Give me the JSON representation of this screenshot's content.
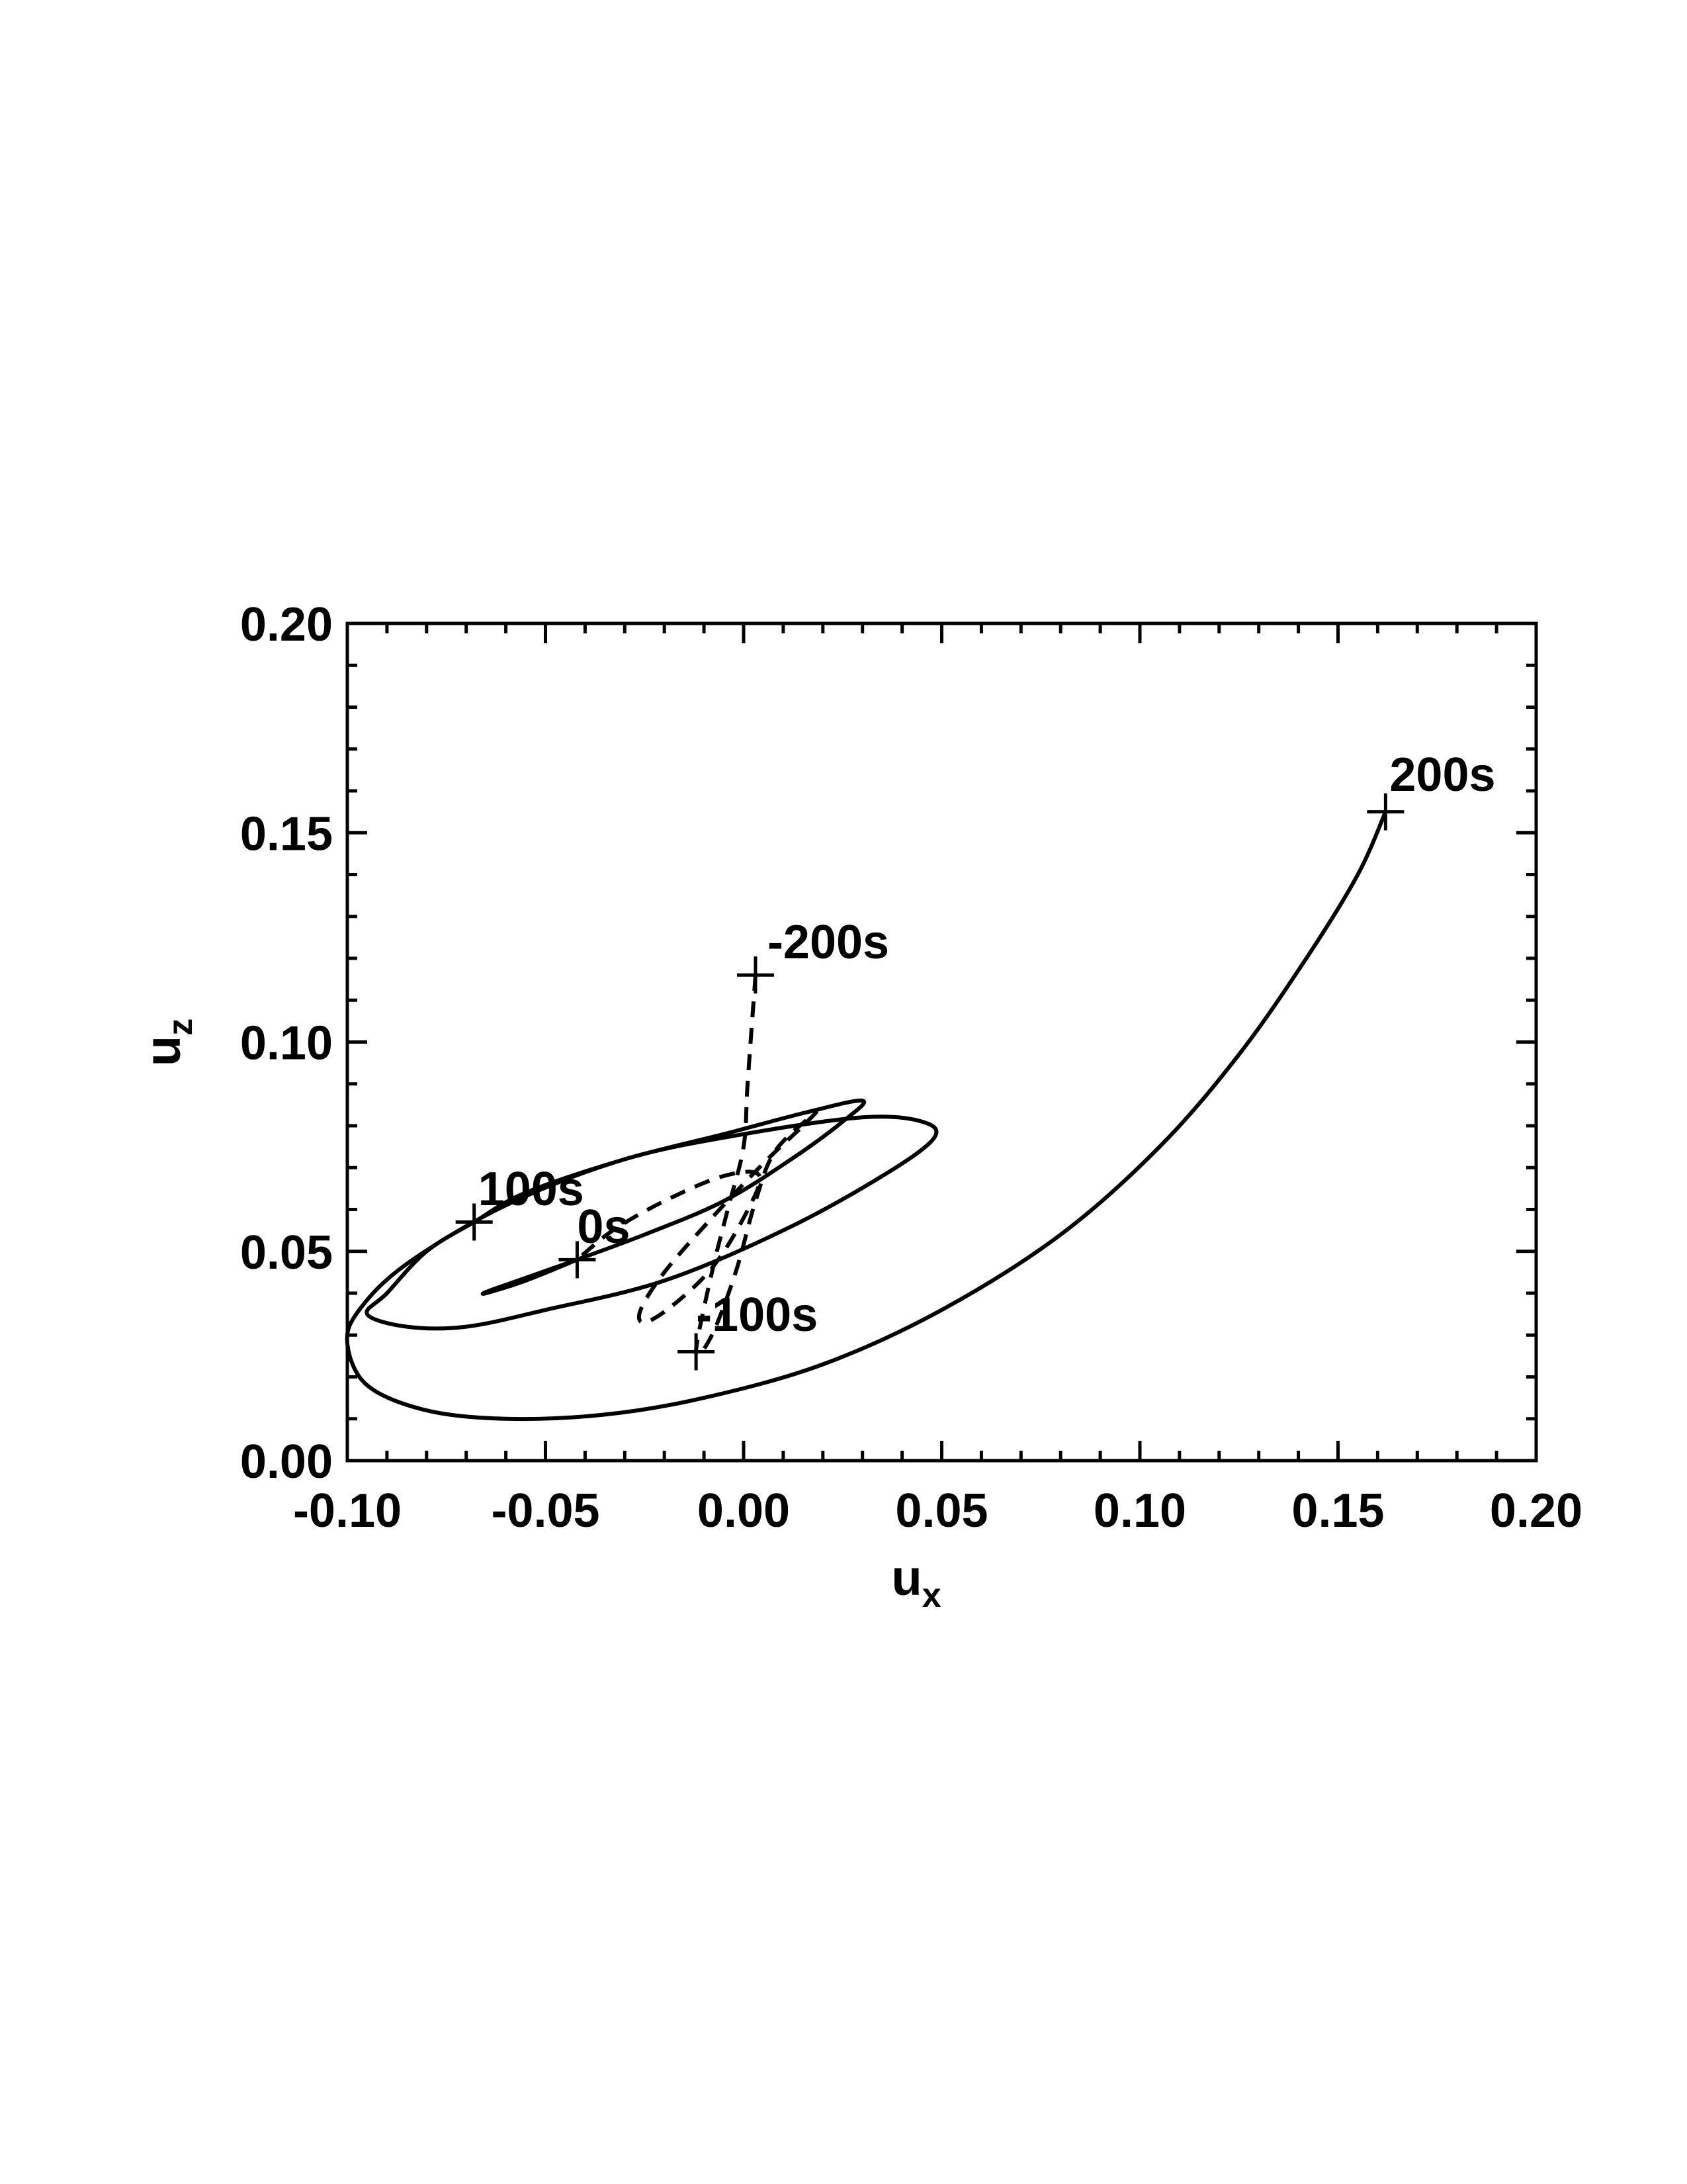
{
  "chart_data": {
    "type": "line",
    "title": "",
    "xlabel": {
      "base": "u",
      "sub": "x"
    },
    "ylabel": {
      "base": "u",
      "sub": "z"
    },
    "xlim": [
      -0.1,
      0.2
    ],
    "ylim": [
      0.0,
      0.2
    ],
    "xticks": [
      {
        "value": -0.1,
        "label": "-0.10"
      },
      {
        "value": -0.05,
        "label": "-0.05"
      },
      {
        "value": 0.0,
        "label": "0.00"
      },
      {
        "value": 0.05,
        "label": "0.05"
      },
      {
        "value": 0.1,
        "label": "0.10"
      },
      {
        "value": 0.15,
        "label": "0.15"
      },
      {
        "value": 0.2,
        "label": "0.20"
      }
    ],
    "yticks": [
      {
        "value": 0.0,
        "label": "0.00"
      },
      {
        "value": 0.05,
        "label": "0.05"
      },
      {
        "value": 0.1,
        "label": "0.10"
      },
      {
        "value": 0.15,
        "label": "0.15"
      },
      {
        "value": 0.2,
        "label": "0.20"
      }
    ],
    "minor_x_step": 0.01,
    "minor_y_step": 0.01,
    "grid": false,
    "legend": "none",
    "series": [
      {
        "style": "solid",
        "color": "#000000",
        "points": [
          [
            -0.042,
            0.048
          ],
          [
            -0.055,
            0.043
          ],
          [
            -0.065,
            0.04
          ],
          [
            -0.063,
            0.041
          ],
          [
            -0.045,
            0.047
          ],
          [
            -0.025,
            0.054
          ],
          [
            -0.005,
            0.062
          ],
          [
            0.012,
            0.072
          ],
          [
            0.025,
            0.081
          ],
          [
            0.03,
            0.086
          ],
          [
            0.015,
            0.083
          ],
          [
            -0.005,
            0.078
          ],
          [
            -0.03,
            0.072
          ],
          [
            -0.055,
            0.064
          ],
          [
            -0.068,
            0.057
          ],
          [
            -0.08,
            0.05
          ],
          [
            -0.09,
            0.04
          ],
          [
            -0.095,
            0.035
          ],
          [
            -0.085,
            0.032
          ],
          [
            -0.07,
            0.032
          ],
          [
            -0.05,
            0.036
          ],
          [
            -0.02,
            0.043
          ],
          [
            0.01,
            0.055
          ],
          [
            0.035,
            0.068
          ],
          [
            0.048,
            0.077
          ],
          [
            0.045,
            0.081
          ],
          [
            0.03,
            0.082
          ],
          [
            0.0,
            0.078
          ],
          [
            -0.03,
            0.072
          ],
          [
            -0.06,
            0.061
          ],
          [
            -0.085,
            0.047
          ],
          [
            -0.097,
            0.036
          ],
          [
            -0.1,
            0.028
          ],
          [
            -0.095,
            0.018
          ],
          [
            -0.08,
            0.012
          ],
          [
            -0.06,
            0.01
          ],
          [
            -0.035,
            0.011
          ],
          [
            -0.01,
            0.015
          ],
          [
            0.02,
            0.023
          ],
          [
            0.05,
            0.036
          ],
          [
            0.08,
            0.054
          ],
          [
            0.105,
            0.075
          ],
          [
            0.125,
            0.097
          ],
          [
            0.142,
            0.12
          ],
          [
            0.155,
            0.14
          ],
          [
            0.162,
            0.155
          ]
        ]
      },
      {
        "style": "dashed",
        "color": "#000000",
        "points": [
          [
            0.003,
            0.116
          ],
          [
            0.001,
            0.09
          ],
          [
            0.0,
            0.075
          ],
          [
            -0.004,
            0.06
          ],
          [
            -0.008,
            0.045
          ],
          [
            -0.012,
            0.026
          ],
          [
            -0.008,
            0.03
          ],
          [
            -0.002,
            0.045
          ],
          [
            0.003,
            0.062
          ],
          [
            0.008,
            0.074
          ],
          [
            0.018,
            0.083
          ],
          [
            0.015,
            0.08
          ],
          [
            0.005,
            0.071
          ],
          [
            -0.008,
            0.058
          ],
          [
            -0.02,
            0.045
          ],
          [
            -0.026,
            0.036
          ],
          [
            -0.025,
            0.033
          ],
          [
            -0.018,
            0.037
          ],
          [
            -0.008,
            0.046
          ],
          [
            0.0,
            0.058
          ],
          [
            0.004,
            0.068
          ],
          [
            -0.005,
            0.068
          ],
          [
            -0.02,
            0.062
          ],
          [
            -0.033,
            0.055
          ],
          [
            -0.042,
            0.048
          ]
        ]
      }
    ],
    "markers": [
      {
        "x": 0.162,
        "y": 0.155,
        "label": "200s",
        "dx": 0.001,
        "dy": 0.005
      },
      {
        "x": 0.003,
        "y": 0.116,
        "label": "-200s",
        "dx": 0.003,
        "dy": 0.004
      },
      {
        "x": -0.068,
        "y": 0.057,
        "label": "100s",
        "dx": 0.001,
        "dy": 0.004
      },
      {
        "x": -0.042,
        "y": 0.048,
        "label": "0s",
        "dx": 0.0,
        "dy": 0.004
      },
      {
        "x": -0.012,
        "y": 0.026,
        "label": "-100s",
        "dx": 0.0,
        "dy": 0.005
      }
    ]
  }
}
